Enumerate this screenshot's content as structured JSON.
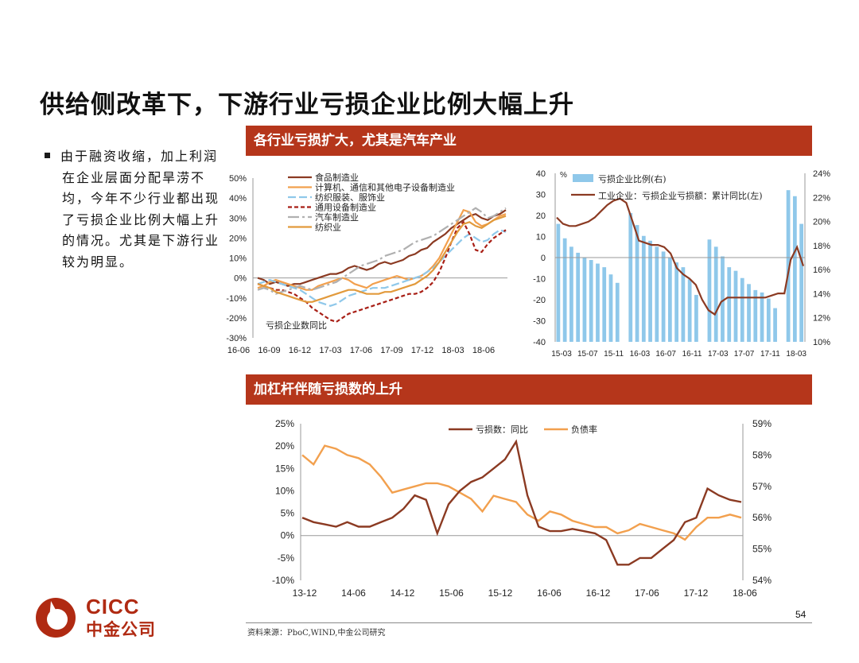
{
  "page": {
    "title": "供给侧改革下，下游行业亏损企业比例大幅上升",
    "bullet": "由于融资收缩，加上利润在企业层面分配旱涝不均，今年不少行业都出现了亏损企业比例大幅上升的情况。尤其是下游行业较为明显。",
    "banner1": "各行业亏损扩大，尤其是汽车产业",
    "banner2": "加杠杆伴随亏损数的上升",
    "page_number": "54",
    "source": "资料来源：PboC,WIND,中金公司研究",
    "logo_cicc": "CICC",
    "logo_cn": "中金公司"
  },
  "colors": {
    "banner": "#b5361b",
    "brown": "#8b3a22",
    "orange": "#f2a04e",
    "lightblue": "#8fc8ea",
    "darkred": "#a81f16",
    "gray": "#b0b0b0",
    "orange2": "#e29a3c"
  },
  "chart_data": [
    {
      "type": "line",
      "title": "亏损企业数同比",
      "x_ticks": [
        "16-06",
        "16-09",
        "16-12",
        "17-03",
        "17-06",
        "17-09",
        "17-12",
        "18-03",
        "18-06"
      ],
      "ylim": [
        -30,
        50
      ],
      "y_ticks": [
        "50%",
        "40%",
        "30%",
        "20%",
        "10%",
        "0%",
        "-10%",
        "-20%",
        "-30%"
      ],
      "series": [
        {
          "name": "食品制造业",
          "color": "#8b3a22",
          "dash": "",
          "values": [
            0,
            -1,
            -3,
            -2,
            -3,
            -4,
            -3,
            -3,
            -2,
            -1,
            0,
            1,
            2,
            2,
            3,
            5,
            6,
            5,
            4,
            5,
            7,
            8,
            7,
            8,
            9,
            11,
            12,
            14,
            15,
            18,
            20,
            22,
            25,
            27,
            29,
            31,
            32,
            30,
            29,
            31,
            32,
            34
          ]
        },
        {
          "name": "计算机、通信和其他电子设备制造业",
          "color": "#f2a04e",
          "dash": "",
          "values": [
            -5,
            -4,
            -2,
            -1,
            -2,
            -3,
            -4,
            -5,
            -6,
            -6,
            -4,
            -3,
            -2,
            -1,
            0,
            -1,
            -3,
            -4,
            -5,
            -3,
            -2,
            -1,
            0,
            1,
            0,
            -1,
            0,
            1,
            3,
            6,
            10,
            16,
            22,
            28,
            34,
            33,
            28,
            26,
            27,
            29,
            31,
            32
          ]
        },
        {
          "name": "纺织服装、服饰业",
          "color": "#8fc8ea",
          "dash": "10,4",
          "values": [
            -3,
            -2,
            -1,
            -2,
            -3,
            -4,
            -5,
            -6,
            -8,
            -10,
            -12,
            -13,
            -14,
            -13,
            -11,
            -9,
            -8,
            -7,
            -6,
            -5,
            -5,
            -5,
            -4,
            -3,
            -2,
            -1,
            0,
            1,
            3,
            5,
            8,
            11,
            14,
            17,
            20,
            22,
            20,
            18,
            19,
            22,
            24,
            23
          ]
        },
        {
          "name": "通用设备制造业",
          "color": "#a81f16",
          "dash": "5,3",
          "values": [
            -3,
            -4,
            -5,
            -6,
            -6,
            -7,
            -8,
            -10,
            -12,
            -15,
            -17,
            -19,
            -21,
            -22,
            -20,
            -18,
            -17,
            -16,
            -15,
            -14,
            -13,
            -12,
            -11,
            -10,
            -9,
            -8,
            -8,
            -7,
            -5,
            -2,
            3,
            10,
            18,
            25,
            28,
            22,
            14,
            13,
            17,
            20,
            22,
            24
          ]
        },
        {
          "name": "汽车制造业",
          "color": "#b0b0b0",
          "dash": "14,4,3,4",
          "values": [
            -6,
            -5,
            -6,
            -8,
            -7,
            -6,
            -5,
            -4,
            -5,
            -6,
            -5,
            -4,
            -3,
            -2,
            0,
            2,
            4,
            6,
            7,
            8,
            9,
            11,
            12,
            13,
            14,
            16,
            18,
            19,
            20,
            21,
            23,
            25,
            27,
            29,
            31,
            33,
            35,
            33,
            30,
            31,
            33,
            35
          ]
        },
        {
          "name": "纺织业",
          "color": "#e29a3c",
          "dash": "",
          "values": [
            -3,
            -4,
            -5,
            -7,
            -8,
            -9,
            -10,
            -11,
            -12,
            -12,
            -11,
            -10,
            -9,
            -8,
            -7,
            -6,
            -6,
            -7,
            -8,
            -8,
            -8,
            -7,
            -7,
            -6,
            -5,
            -4,
            -3,
            -1,
            1,
            4,
            8,
            13,
            18,
            23,
            27,
            28,
            26,
            25,
            27,
            29,
            30,
            31
          ]
        }
      ]
    },
    {
      "type": "bar+line",
      "x_ticks": [
        "15-03",
        "15-07",
        "15-11",
        "16-03",
        "16-07",
        "16-11",
        "17-03",
        "17-07",
        "17-11",
        "18-03"
      ],
      "y_left_label": "%",
      "y_left_lim": [
        -40,
        40
      ],
      "y_left_ticks": [
        "40",
        "30",
        "20",
        "10",
        "0",
        "-10",
        "-20",
        "-30",
        "-40"
      ],
      "y_right_lim": [
        10,
        24
      ],
      "y_right_ticks": [
        "24%",
        "22%",
        "20%",
        "18%",
        "16%",
        "14%",
        "12%",
        "10%"
      ],
      "series": [
        {
          "name": "亏损企业比例(右)",
          "type": "bar",
          "axis": "right",
          "color": "#8fc8ea",
          "values": [
            19.8,
            18.6,
            17.9,
            17.4,
            17.0,
            16.8,
            16.5,
            16.2,
            15.6,
            14.9,
            null,
            20.7,
            19.7,
            18.8,
            18.4,
            17.9,
            17.5,
            17.0,
            16.6,
            16.2,
            15.2,
            13.9,
            null,
            18.5,
            17.9,
            17.1,
            16.2,
            15.9,
            15.3,
            14.8,
            14.3,
            14.1,
            13.6,
            12.8,
            null,
            22.6,
            22.1,
            19.8
          ]
        },
        {
          "name": "工业企业：亏损企业亏损额：累计同比(左)",
          "type": "line",
          "axis": "left",
          "color": "#8b3a22",
          "values": [
            19,
            16,
            15,
            15,
            16,
            17,
            19,
            22,
            25,
            27,
            28,
            26,
            17,
            8,
            7,
            6,
            6,
            5,
            2,
            -5,
            -8,
            -10,
            -13,
            -20,
            -25,
            -27,
            -21,
            -19,
            -19,
            -19,
            -19,
            -19,
            -19,
            -19,
            -18,
            -17,
            -17,
            -1,
            5,
            -4
          ]
        }
      ]
    },
    {
      "type": "line",
      "x_ticks": [
        "13-12",
        "14-06",
        "14-12",
        "15-06",
        "15-12",
        "16-06",
        "16-12",
        "17-06",
        "17-12",
        "18-06"
      ],
      "y_left_lim": [
        -10,
        25
      ],
      "y_left_ticks": [
        "25%",
        "20%",
        "15%",
        "10%",
        "5%",
        "0%",
        "-5%",
        "-10%"
      ],
      "y_right_lim": [
        54,
        59
      ],
      "y_right_ticks": [
        "59%",
        "58%",
        "57%",
        "56%",
        "55%",
        "54%"
      ],
      "series": [
        {
          "name": "亏损数：同比",
          "axis": "left",
          "color": "#8b3a22",
          "values": [
            4,
            3,
            2.5,
            2,
            3,
            2,
            2,
            3,
            4,
            6,
            9,
            8,
            0.5,
            7,
            10,
            12,
            13,
            15,
            17,
            21,
            9,
            2,
            1,
            1,
            1.5,
            1,
            0.5,
            -1,
            -6.5,
            -6.5,
            -5,
            -5,
            -3,
            -1,
            3,
            4,
            10.5,
            9,
            8,
            7.5
          ]
        },
        {
          "name": "负债率",
          "axis": "left_mapped_right",
          "color": "#f2a04e",
          "values_right": [
            58.0,
            57.7,
            58.3,
            58.2,
            58.0,
            57.9,
            57.7,
            57.3,
            56.8,
            56.9,
            57.0,
            57.1,
            57.1,
            57.0,
            56.8,
            56.6,
            56.2,
            56.7,
            56.6,
            56.5,
            56.1,
            55.9,
            56.2,
            56.1,
            55.9,
            55.8,
            55.7,
            55.7,
            55.5,
            55.6,
            55.8,
            55.7,
            55.6,
            55.5,
            55.3,
            55.7,
            56.0,
            56.0,
            56.1,
            56.0
          ]
        }
      ]
    }
  ]
}
